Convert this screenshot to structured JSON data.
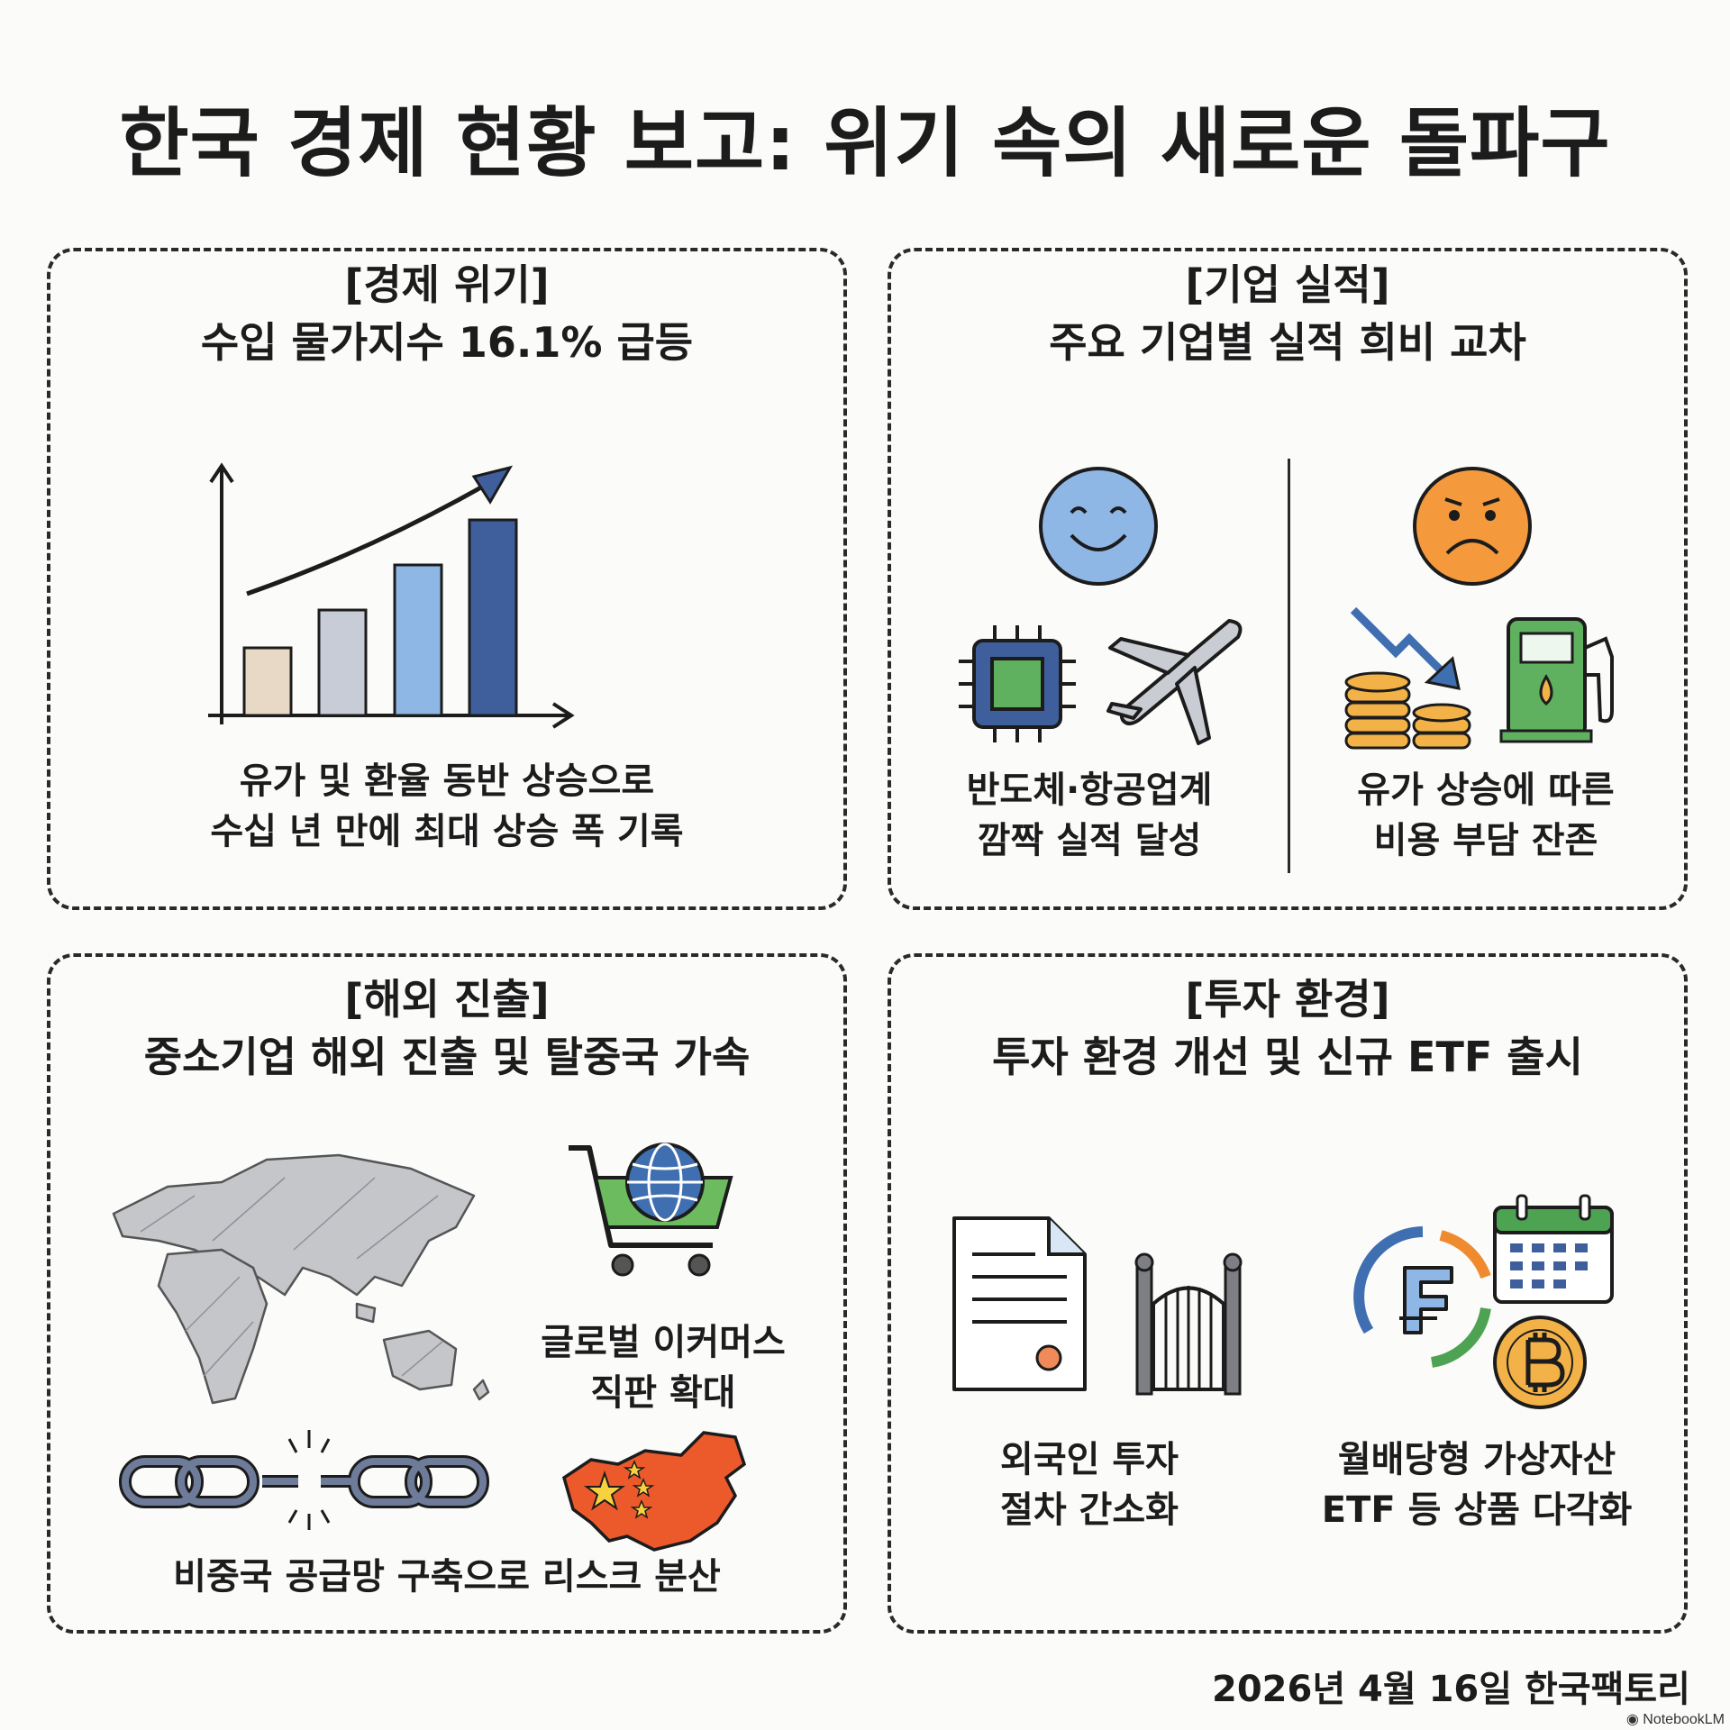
{
  "title": "한국 경제 현황 보고: 위기 속의 새로운 돌파구",
  "panels": {
    "crisis": {
      "tag": "[경제 위기]",
      "headline": "수입 물가지수 16.1% 급등",
      "desc_line1": "유가 및 환율 동반 상승으로",
      "desc_line2": "수십 년 만에 최대 상승 폭 기록",
      "icons": [
        "rising-bar-chart-icon",
        "upward-arrow-icon"
      ]
    },
    "earnings": {
      "tag": "[기업 실적]",
      "headline": "주요 기업별 실적 희비 교차",
      "left_line1": "반도체·항공업계",
      "left_line2": "깜짝 실적 달성",
      "right_line1": "유가 상승에 따른",
      "right_line2": "비용 부담 잔존",
      "icons": [
        "smiley-face-icon",
        "chip-icon",
        "airplane-icon",
        "sad-face-icon",
        "down-arrow-icon",
        "coins-icon",
        "fuel-pump-icon"
      ]
    },
    "overseas": {
      "tag": "[해외 진출]",
      "headline": "중소기업 해외 진출 및 탈중국 가속",
      "ecommerce_line1": "글로벌 이커머스",
      "ecommerce_line2": "직판 확대",
      "supply": "비중국 공급망 구축으로 리스크 분산",
      "icons": [
        "world-map-icon",
        "shopping-cart-globe-icon",
        "broken-chain-icon",
        "china-map-icon"
      ]
    },
    "investment": {
      "tag": "[투자 환경]",
      "headline": "투자 환경 개선 및 신규 ETF 출시",
      "left_line1": "외국인 투자",
      "left_line2": "절차 간소화",
      "right_line1": "월배당형 가상자산",
      "right_line2": "ETF 등 상품 다각화",
      "icons": [
        "document-icon",
        "gate-icon",
        "etf-coin-icon",
        "calendar-icon",
        "bitcoin-icon"
      ]
    }
  },
  "footer": "2026년 4월 16일 한국팩토리",
  "brand": "NotebookLM",
  "colors": {
    "blue": "#3f6fb0",
    "light_blue": "#8fb7e6",
    "orange": "#f08a2e",
    "red": "#e0532b",
    "green": "#4ea352",
    "gold": "#f2b247",
    "gray": "#b9bcc2"
  }
}
